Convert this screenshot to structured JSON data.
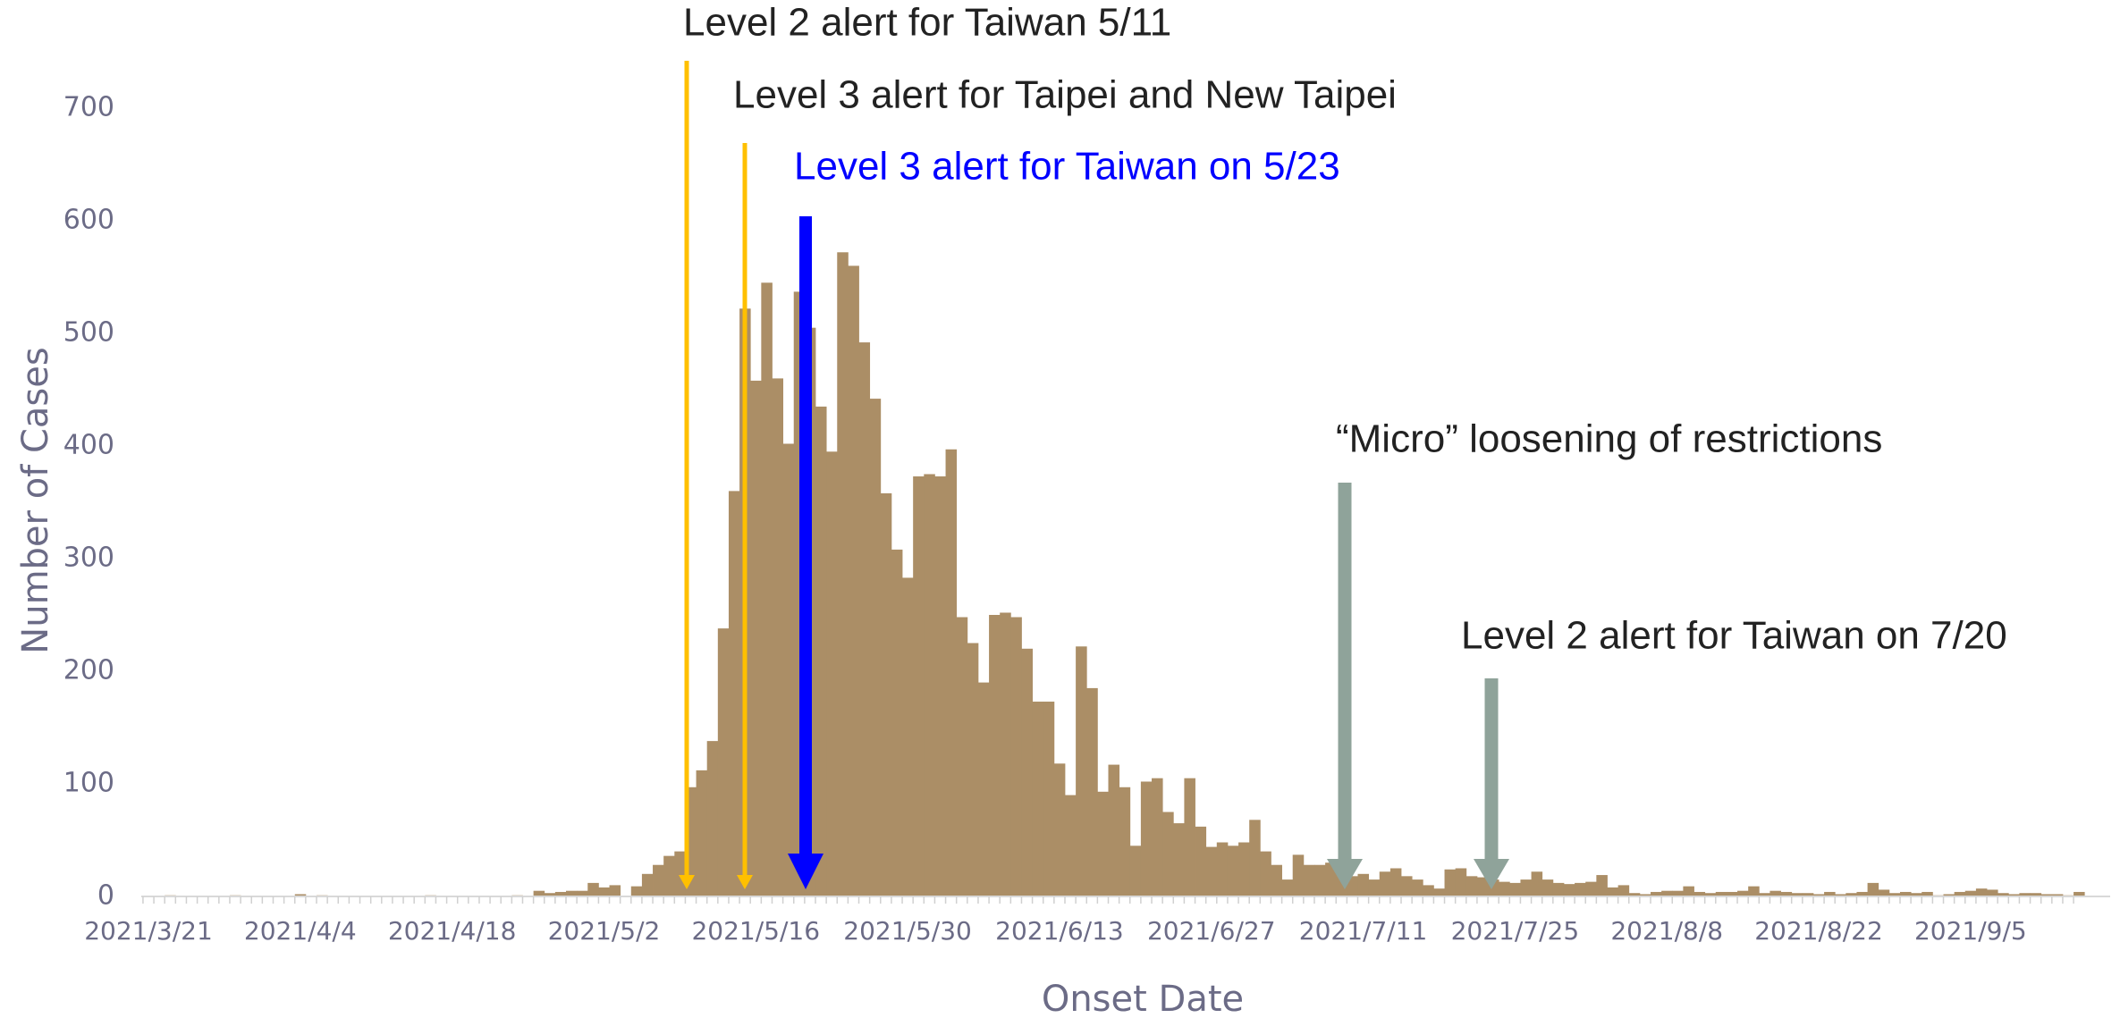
{
  "chart_data": {
    "type": "bar",
    "color": "#ab8e66",
    "y_label": "Number of Cases",
    "x_label": "Onset Date",
    "ylim": [
      0,
      700
    ],
    "yticks": [
      0,
      100,
      200,
      300,
      400,
      500,
      600,
      700
    ],
    "categories": [
      "2021/3/21",
      null,
      null,
      null,
      null,
      null,
      null,
      null,
      null,
      null,
      null,
      null,
      null,
      null,
      "2021/4/4",
      null,
      null,
      null,
      null,
      null,
      null,
      null,
      null,
      null,
      null,
      null,
      null,
      null,
      "2021/4/18",
      null,
      null,
      null,
      null,
      null,
      null,
      null,
      null,
      null,
      null,
      null,
      null,
      null,
      "2021/5/2",
      null,
      null,
      null,
      null,
      null,
      null,
      null,
      null,
      null,
      null,
      null,
      null,
      null,
      "2021/5/16",
      null,
      null,
      null,
      null,
      null,
      null,
      null,
      null,
      null,
      null,
      null,
      null,
      null,
      "2021/5/30",
      null,
      null,
      null,
      null,
      null,
      null,
      null,
      null,
      null,
      null,
      null,
      null,
      null,
      "2021/6/13",
      null,
      null,
      null,
      null,
      null,
      null,
      null,
      null,
      null,
      null,
      null,
      null,
      null,
      "2021/6/27",
      null,
      null,
      null,
      null,
      null,
      null,
      null,
      null,
      null,
      null,
      null,
      null,
      null,
      "2021/7/11",
      null,
      null,
      null,
      null,
      null,
      null,
      null,
      null,
      null,
      null,
      null,
      null,
      null,
      "2021/7/25",
      null,
      null,
      null,
      null,
      null,
      null,
      null,
      null,
      null,
      null,
      null,
      null,
      null,
      "2021/8/8",
      null,
      null,
      null,
      null,
      null,
      null,
      null,
      null,
      null,
      null,
      null,
      null,
      null,
      "2021/8/22",
      null,
      null,
      null,
      null,
      null,
      null,
      null,
      null,
      null,
      null,
      null,
      null,
      null,
      "2021/9/5",
      null,
      null,
      null,
      null,
      null,
      null,
      null,
      null,
      null,
      null
    ],
    "values": [
      0,
      0,
      1,
      0,
      0,
      0,
      0,
      0,
      1,
      0,
      0,
      0,
      0,
      0,
      2,
      0,
      1,
      0,
      0,
      0,
      0,
      0,
      0,
      0,
      0,
      0,
      1,
      0,
      0,
      0,
      0,
      0,
      0,
      0,
      1,
      0,
      5,
      3,
      4,
      5,
      5,
      12,
      8,
      10,
      0,
      9,
      20,
      28,
      36,
      40,
      97,
      112,
      138,
      238,
      360,
      522,
      458,
      545,
      460,
      402,
      537,
      505,
      435,
      395,
      572,
      560,
      492,
      442,
      358,
      308,
      283,
      373,
      375,
      373,
      397,
      248,
      225,
      190,
      250,
      252,
      248,
      220,
      173,
      173,
      118,
      90,
      222,
      185,
      93,
      117,
      97,
      45,
      102,
      105,
      75,
      65,
      105,
      62,
      44,
      48,
      45,
      48,
      68,
      40,
      28,
      15,
      37,
      28,
      28,
      30,
      20,
      18,
      20,
      15,
      22,
      25,
      18,
      15,
      10,
      7,
      24,
      25,
      18,
      17,
      15,
      13,
      12,
      15,
      22,
      15,
      12,
      11,
      12,
      13,
      19,
      8,
      10,
      3,
      2,
      4,
      5,
      5,
      9,
      4,
      3,
      4,
      4,
      5,
      9,
      3,
      5,
      4,
      3,
      3,
      2,
      4,
      2,
      3,
      4,
      12,
      6,
      3,
      4,
      3,
      4,
      1,
      2,
      4,
      5,
      7,
      6,
      3,
      2,
      3,
      3,
      2,
      2,
      1,
      4
    ],
    "annotations": [
      {
        "text": "Level 2 alert for Taiwan 5/11",
        "color": "#222222"
      },
      {
        "text": "Level 3 alert for Taipei and New Taipei",
        "color": "#222222"
      },
      {
        "text": "Level 3 alert for Taiwan on 5/23",
        "color": "#0000ff"
      },
      {
        "text": "“Micro” loosening of restrictions",
        "color": "#222222"
      },
      {
        "text": "Level 2 alert for Taiwan on 7/20",
        "color": "#222222"
      }
    ],
    "arrow_colors": [
      "#ffc000",
      "#ffc000",
      "#0000ff",
      "#8fa39a",
      "#8fa39a"
    ]
  }
}
